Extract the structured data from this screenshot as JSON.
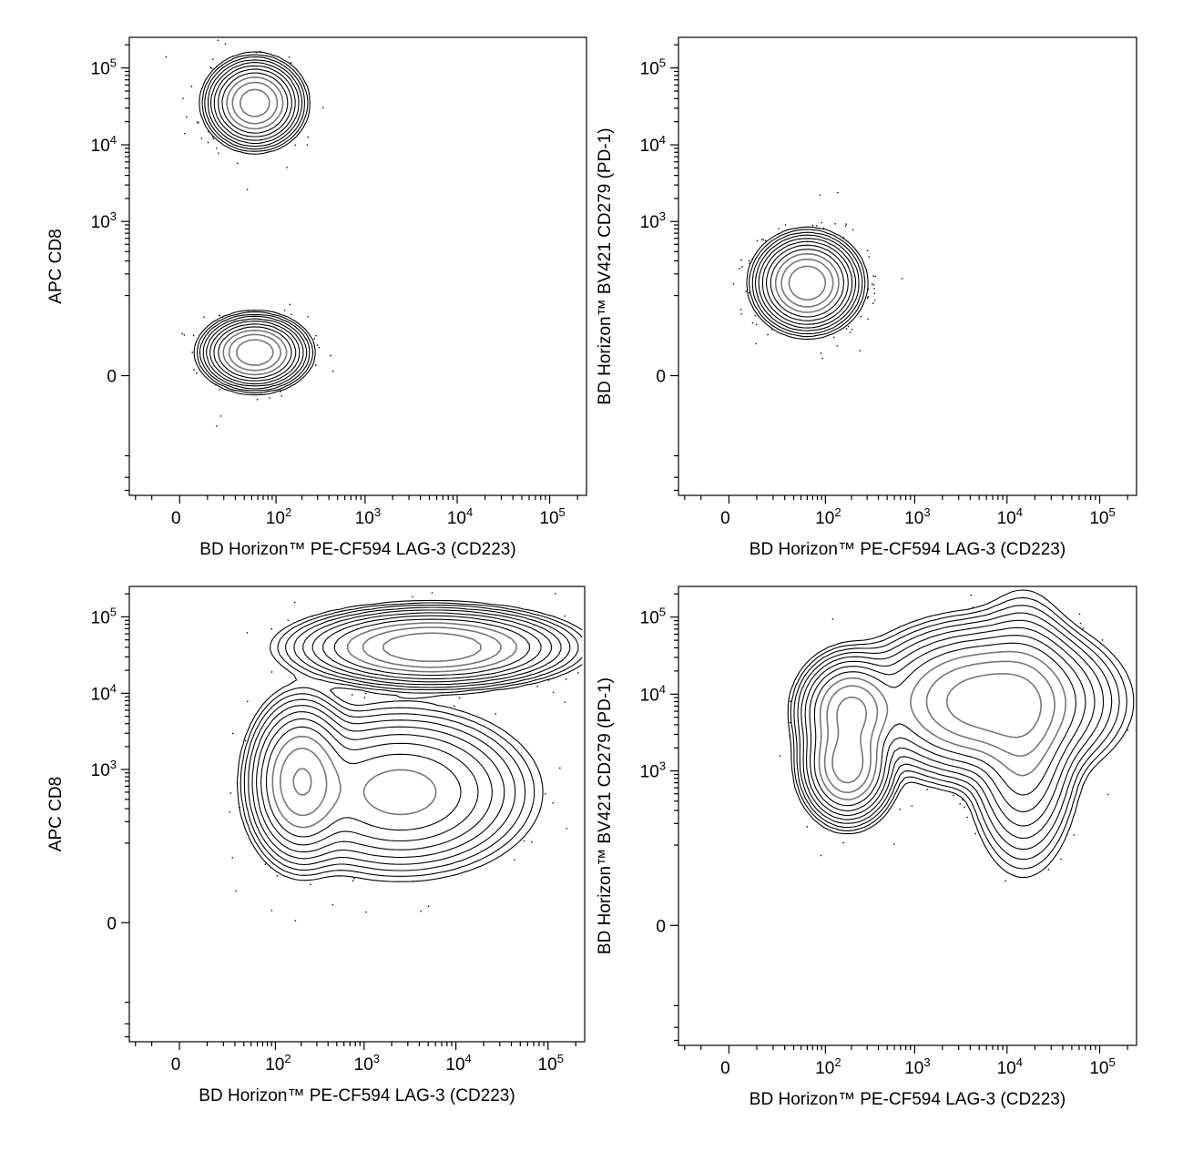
{
  "chart_data": [
    {
      "type": "contour",
      "xlabel": "BD Horizon™ PE-CF594 LAG-3 (CD223)",
      "ylabel": "APC CD8",
      "x_scale": "biexponential",
      "y_scale": "biexponential",
      "xticks": [
        "0",
        "10^2",
        "10^3",
        "10^4",
        "10^5"
      ],
      "yticks": [
        "0",
        "10^3",
        "10^4",
        "10^5"
      ],
      "populations": [
        {
          "x": 55,
          "y": 35000,
          "sx": 0.12,
          "sy": 0.11,
          "weight": 0.5
        },
        {
          "x": 55,
          "y": 10,
          "sx": 0.13,
          "sy": 0.09,
          "weight": 0.5
        }
      ],
      "grid": false
    },
    {
      "type": "contour",
      "xlabel": "BD Horizon™ PE-CF594 LAG-3 (CD223)",
      "ylabel": "BD Horizon™ BV421 CD279 (PD-1)",
      "x_scale": "biexponential",
      "y_scale": "biexponential",
      "xticks": [
        "0",
        "10^2",
        "10^3",
        "10^4",
        "10^5"
      ],
      "yticks": [
        "0",
        "10^3",
        "10^4",
        "10^5"
      ],
      "populations": [
        {
          "x": 60,
          "y": 150,
          "sx": 0.13,
          "sy": 0.12,
          "weight": 1.0
        }
      ],
      "grid": false
    },
    {
      "type": "contour",
      "xlabel": "BD Horizon™ PE-CF594 LAG-3 (CD223)",
      "ylabel": "APC CD8",
      "x_scale": "biexponential",
      "y_scale": "biexponential",
      "xticks": [
        "0",
        "10^2",
        "10^3",
        "10^4",
        "10^5"
      ],
      "yticks": [
        "0",
        "10^3",
        "10^4",
        "10^5"
      ],
      "populations": [
        {
          "x": 5500,
          "y": 40000,
          "sx": 0.35,
          "sy": 0.1,
          "weight": 0.45
        },
        {
          "x": 200,
          "y": 700,
          "sx": 0.14,
          "sy": 0.22,
          "weight": 0.25
        },
        {
          "x": 2500,
          "y": 500,
          "sx": 0.35,
          "sy": 0.22,
          "weight": 0.3
        }
      ],
      "grid": false
    },
    {
      "type": "contour",
      "xlabel": "BD Horizon™ PE-CF594 LAG-3 (CD223)",
      "ylabel": "BD Horizon™ BV421 CD279 (PD-1)",
      "x_scale": "biexponential",
      "y_scale": "biexponential",
      "xticks": [
        "0",
        "10^2",
        "10^3",
        "10^4",
        "10^5"
      ],
      "yticks": [
        "0",
        "10^3",
        "10^4",
        "10^5"
      ],
      "populations": [
        {
          "x": 6000,
          "y": 8000,
          "sx": 0.32,
          "sy": 0.2,
          "weight": 0.55
        },
        {
          "x": 180,
          "y": 1200,
          "sx": 0.12,
          "sy": 0.15,
          "weight": 0.15
        },
        {
          "x": 200,
          "y": 6000,
          "sx": 0.14,
          "sy": 0.15,
          "weight": 0.15
        },
        {
          "x": 15000,
          "y": 3000,
          "sx": 0.15,
          "sy": 0.35,
          "weight": 0.15
        }
      ],
      "grid": false
    }
  ]
}
